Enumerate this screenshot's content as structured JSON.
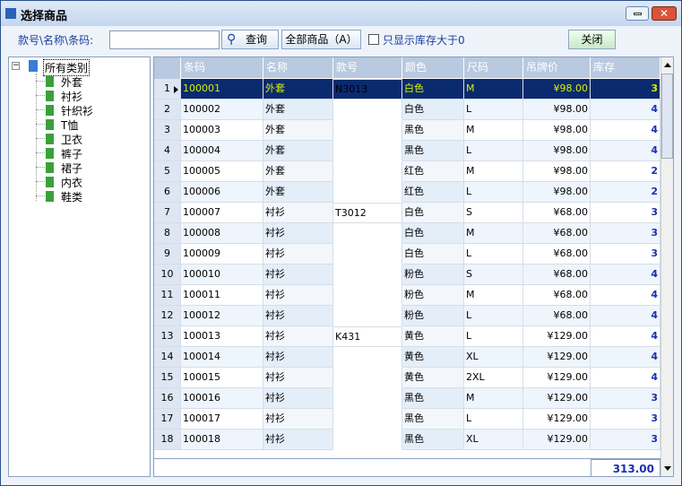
{
  "window": {
    "title": "选择商品",
    "buttons": {
      "search": "查询",
      "all": "全部商品（A）",
      "close": "关闭"
    },
    "search_label": "款号\\名称\\条码:",
    "checkbox_label": "只显示库存大于0"
  },
  "tree": {
    "root": "所有类别",
    "children": [
      "外套",
      "衬衫",
      "针织衫",
      "T恤",
      "卫衣",
      "裤子",
      "裙子",
      "内衣",
      "鞋类"
    ]
  },
  "table": {
    "columns": [
      "条码",
      "名称",
      "款号",
      "颜色",
      "尺码",
      "吊牌价",
      "库存"
    ],
    "rows": [
      [
        1,
        "100001",
        "外套",
        "N3013",
        "白色",
        "M",
        "¥98.00",
        3
      ],
      [
        2,
        "100002",
        "外套",
        null,
        "白色",
        "L",
        "¥98.00",
        4
      ],
      [
        3,
        "100003",
        "外套",
        null,
        "黑色",
        "M",
        "¥98.00",
        4
      ],
      [
        4,
        "100004",
        "外套",
        null,
        "黑色",
        "L",
        "¥98.00",
        4
      ],
      [
        5,
        "100005",
        "外套",
        null,
        "红色",
        "M",
        "¥98.00",
        2
      ],
      [
        6,
        "100006",
        "外套",
        null,
        "红色",
        "L",
        "¥98.00",
        2
      ],
      [
        7,
        "100007",
        "衬衫",
        "T3012",
        "白色",
        "S",
        "¥68.00",
        3
      ],
      [
        8,
        "100008",
        "衬衫",
        null,
        "白色",
        "M",
        "¥68.00",
        3
      ],
      [
        9,
        "100009",
        "衬衫",
        null,
        "白色",
        "L",
        "¥68.00",
        3
      ],
      [
        10,
        "100010",
        "衬衫",
        null,
        "粉色",
        "S",
        "¥68.00",
        4
      ],
      [
        11,
        "100011",
        "衬衫",
        null,
        "粉色",
        "M",
        "¥68.00",
        4
      ],
      [
        12,
        "100012",
        "衬衫",
        null,
        "粉色",
        "L",
        "¥68.00",
        4
      ],
      [
        13,
        "100013",
        "衬衫",
        "K431",
        "黄色",
        "L",
        "¥129.00",
        4
      ],
      [
        14,
        "100014",
        "衬衫",
        null,
        "黄色",
        "XL",
        "¥129.00",
        4
      ],
      [
        15,
        "100015",
        "衬衫",
        null,
        "黄色",
        "2XL",
        "¥129.00",
        4
      ],
      [
        16,
        "100016",
        "衬衫",
        null,
        "黑色",
        "M",
        "¥129.00",
        3
      ],
      [
        17,
        "100017",
        "衬衫",
        null,
        "黑色",
        "L",
        "¥129.00",
        3
      ],
      [
        18,
        "100018",
        "衬衫",
        null,
        "黑色",
        "XL",
        "¥129.00",
        3
      ]
    ],
    "total": "313.00"
  }
}
